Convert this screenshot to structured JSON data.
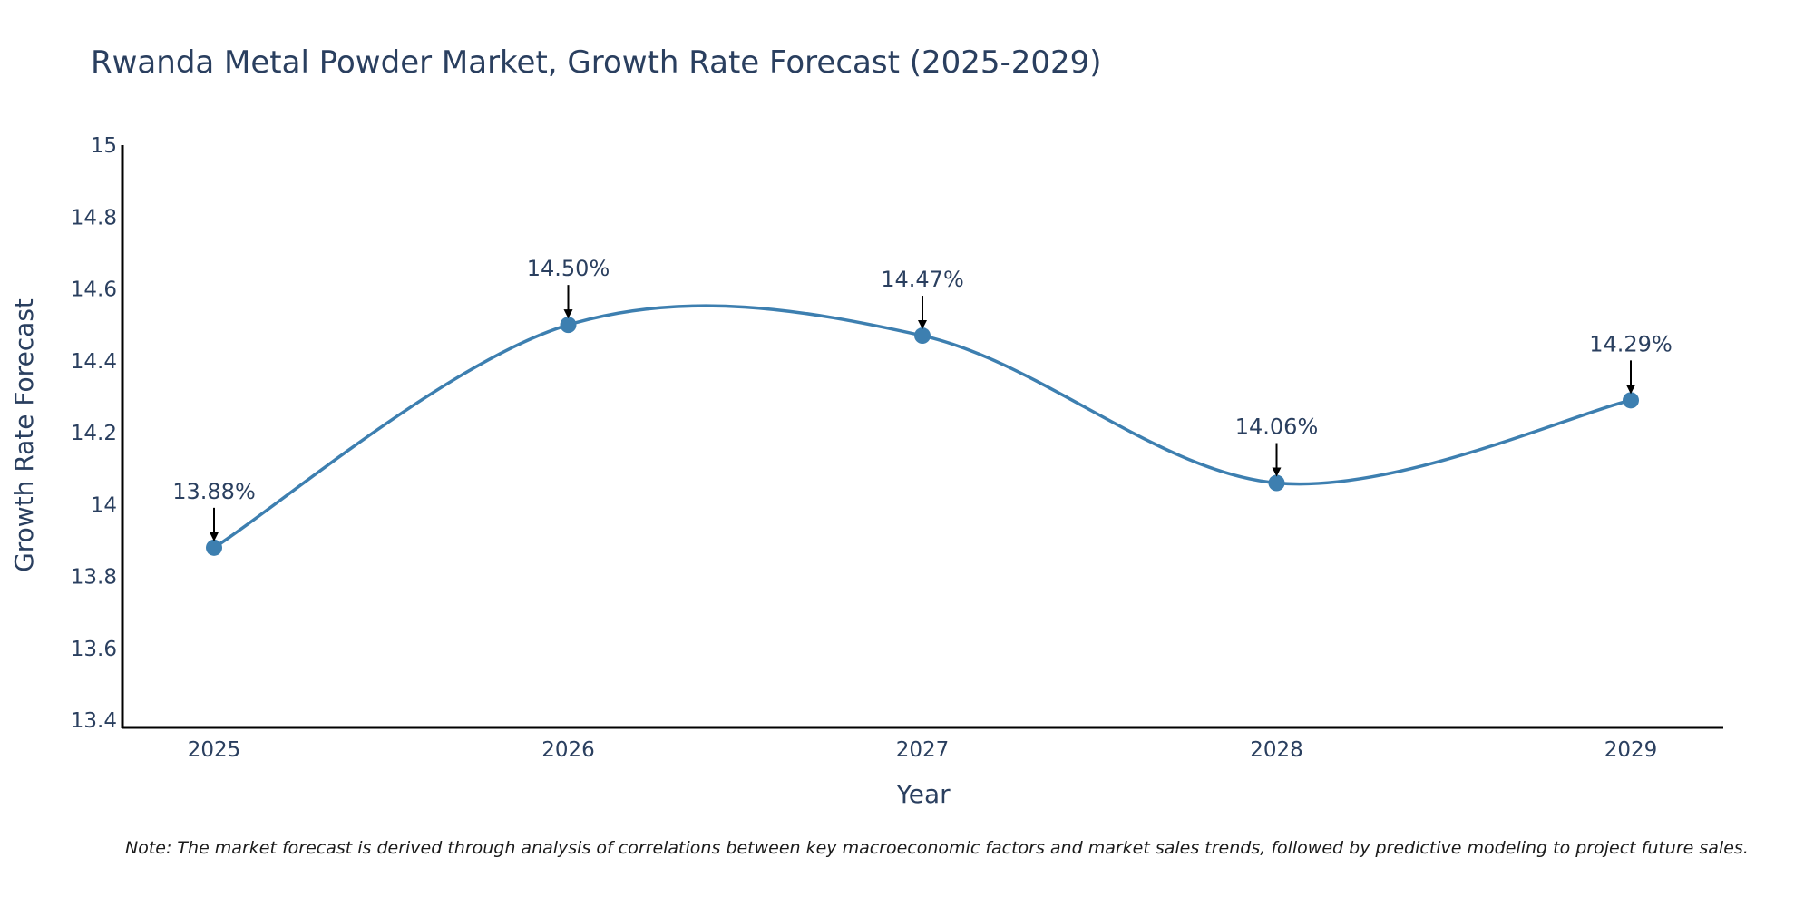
{
  "colors": {
    "line": "#3d7fb0",
    "marker": "#3d7fb0",
    "axis": "#000000",
    "text": "#2a3f5f",
    "arrow": "#000000"
  },
  "chart_data": {
    "type": "line",
    "title": "Rwanda Metal Powder Market, Growth Rate Forecast (2025-2029)",
    "xlabel": "Year",
    "ylabel": "Growth Rate Forecast",
    "categories": [
      "2025",
      "2026",
      "2027",
      "2028",
      "2029"
    ],
    "values": [
      13.88,
      14.5,
      14.47,
      14.06,
      14.29
    ],
    "data_labels": [
      "13.88%",
      "14.50%",
      "14.47%",
      "14.06%",
      "14.29%"
    ],
    "ylim": [
      13.38,
      15.0
    ],
    "yticks": [
      13.4,
      13.6,
      13.8,
      14.0,
      14.2,
      14.4,
      14.6,
      14.8,
      15.0
    ],
    "ytick_labels": [
      "13.4",
      "13.6",
      "13.8",
      "14",
      "14.2",
      "14.4",
      "14.6",
      "14.8",
      "15"
    ],
    "grid": false,
    "line_shape": "spline"
  },
  "note": "Note: The market forecast is derived through analysis of correlations between key macroeconomic factors and market sales trends, followed by predictive modeling to project future sales."
}
